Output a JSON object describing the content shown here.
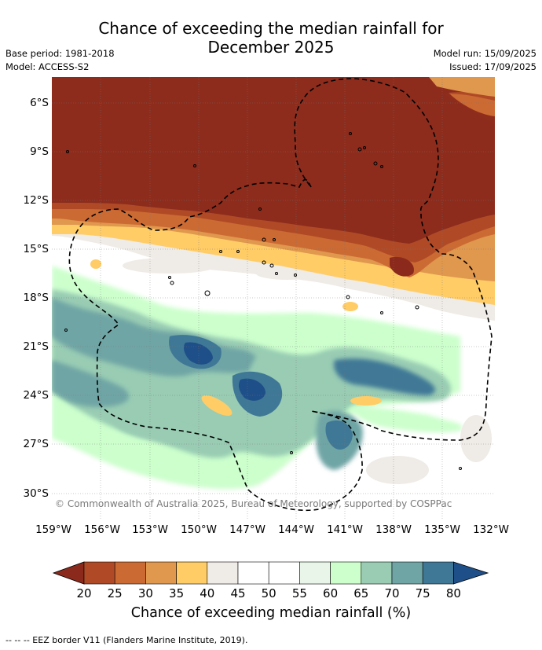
{
  "title": "Chance of exceeding the median rainfall for December 2025",
  "meta_left": {
    "base_period": "Base period: 1981-2018",
    "model": "Model: ACCESS-S2"
  },
  "meta_right": {
    "model_run": "Model run: 15/09/2025",
    "issued": "Issued: 17/09/2025"
  },
  "lat_labels": [
    "6°S",
    "9°S",
    "12°S",
    "15°S",
    "18°S",
    "21°S",
    "24°S",
    "27°S",
    "30°S"
  ],
  "lon_labels": [
    "159°W",
    "156°W",
    "153°W",
    "150°W",
    "147°W",
    "144°W",
    "141°W",
    "138°W",
    "135°W",
    "132°W"
  ],
  "copyright": "© Commonwealth of Australia 2025, Bureau of Meteorology, supported by COSPPac",
  "colorbar": {
    "ticks": [
      "20",
      "25",
      "30",
      "35",
      "40",
      "45",
      "50",
      "55",
      "60",
      "65",
      "70",
      "75",
      "80"
    ],
    "colors": [
      "#8b2a1c",
      "#b04a26",
      "#cc6a33",
      "#e0974e",
      "#ffcc66",
      "#efebe6",
      "#ffffff",
      "#ffffff",
      "#e8f5e8",
      "#ccffcc",
      "#99ccb3",
      "#6fa5a5",
      "#3f7896",
      "#1f4f88"
    ],
    "title": "Chance of exceeding median rainfall (%)"
  },
  "footnote": "-- -- -- EEZ border V11 (Flanders Marine Institute, 2019)."
}
